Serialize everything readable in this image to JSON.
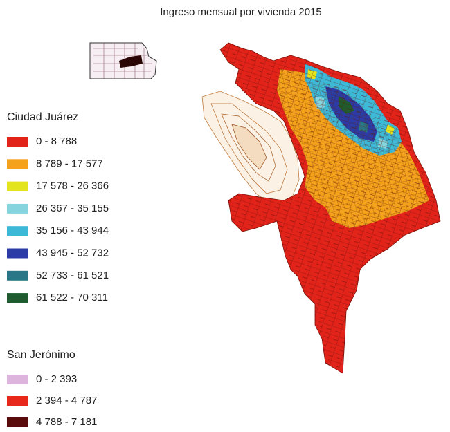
{
  "title": "Ingreso mensual por vivienda 2015",
  "legends": [
    {
      "title": "Ciudad Juárez",
      "items": [
        {
          "label": "0 - 8 788",
          "color": "#e2231a"
        },
        {
          "label": "8 789 - 17 577",
          "color": "#f4a21c"
        },
        {
          "label": "17 578 - 26 366",
          "color": "#e4e41c"
        },
        {
          "label": "26 367 - 35 155",
          "color": "#86d4de"
        },
        {
          "label": "35 156 - 43 944",
          "color": "#3db8d6"
        },
        {
          "label": "43 945 - 52 732",
          "color": "#2b3ca6"
        },
        {
          "label": "52 733 - 61 521",
          "color": "#2a7788"
        },
        {
          "label": "61 522 - 70 311",
          "color": "#1f5c30"
        }
      ]
    },
    {
      "title": "San Jerónimo",
      "items": [
        {
          "label": "0 - 2 393",
          "color": "#dcb4dc"
        },
        {
          "label": "2 394 - 4 787",
          "color": "#e8281a"
        },
        {
          "label": "4 788 - 7 181",
          "color": "#5a0c0c"
        }
      ]
    }
  ]
}
